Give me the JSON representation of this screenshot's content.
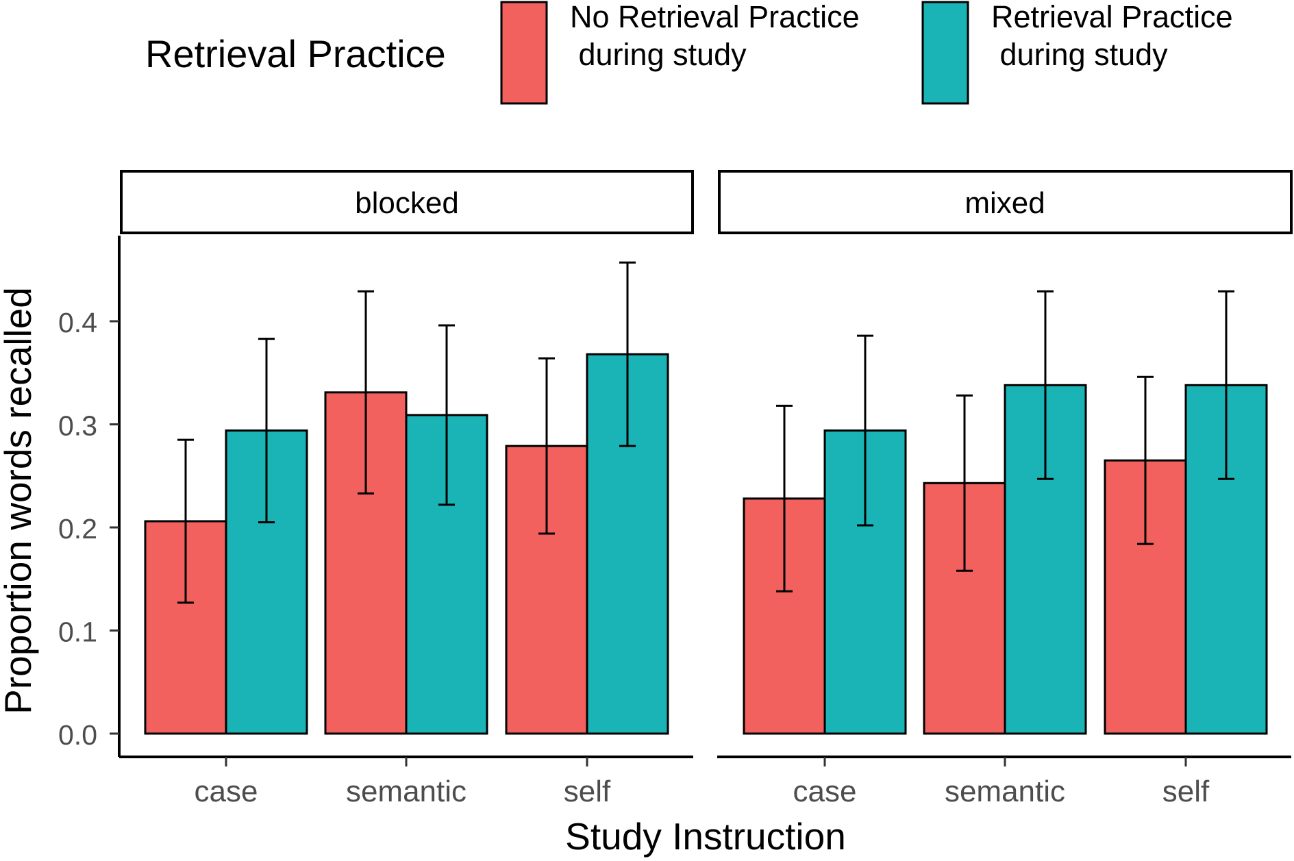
{
  "chart_data": {
    "type": "bar",
    "layout": "faceted-grouped-bar",
    "legend": {
      "title": "Retrieval Practice",
      "position": "top",
      "entries": [
        {
          "line1": "No Retrieval Practice",
          "line2": " during study",
          "color": "#F2615D"
        },
        {
          "line1": "Retrieval Practice",
          "line2": " during study",
          "color": "#1AB3B6"
        }
      ]
    },
    "xlabel": "Study Instruction",
    "ylabel": "Proportion words recalled",
    "ylim": [
      0,
      0.46
    ],
    "yticks": [
      0.0,
      0.1,
      0.2,
      0.3,
      0.4
    ],
    "ytick_labels": [
      "0.0",
      "0.1",
      "0.2",
      "0.3",
      "0.4"
    ],
    "grid": false,
    "categories": [
      "case",
      "semantic",
      "self"
    ],
    "facets": [
      {
        "label": "blocked",
        "series": [
          {
            "name": "No Retrieval Practice during study",
            "values": [
              0.206,
              0.331,
              0.279
            ],
            "err_low": [
              0.127,
              0.233,
              0.194
            ],
            "err_high": [
              0.285,
              0.429,
              0.364
            ]
          },
          {
            "name": "Retrieval Practice during study",
            "values": [
              0.294,
              0.309,
              0.368
            ],
            "err_low": [
              0.205,
              0.222,
              0.279
            ],
            "err_high": [
              0.383,
              0.396,
              0.457
            ]
          }
        ]
      },
      {
        "label": "mixed",
        "series": [
          {
            "name": "No Retrieval Practice during study",
            "values": [
              0.228,
              0.243,
              0.265
            ],
            "err_low": [
              0.138,
              0.158,
              0.184
            ],
            "err_high": [
              0.318,
              0.328,
              0.346
            ]
          },
          {
            "name": "Retrieval Practice during study",
            "values": [
              0.294,
              0.338,
              0.338
            ],
            "err_low": [
              0.202,
              0.247,
              0.247
            ],
            "err_high": [
              0.386,
              0.429,
              0.429
            ]
          }
        ]
      }
    ]
  }
}
